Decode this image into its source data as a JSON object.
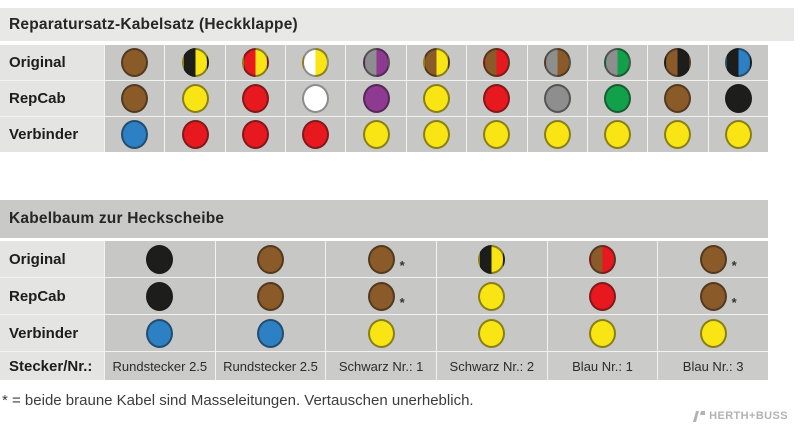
{
  "palette": {
    "brown": "#8a5a28",
    "black": "#1d1d1b",
    "yellow": "#f9e414",
    "red": "#e7181e",
    "white": "#ffffff",
    "purple": "#8d3a90",
    "gray": "#8e8e8e",
    "green": "#13a04a",
    "blue": "#2d80c3"
  },
  "table1": {
    "title": "Reparatursatz-Kabelsatz (Heckklappe)",
    "rows": [
      {
        "label": "Original",
        "cells": [
          {
            "colors": [
              "brown"
            ]
          },
          {
            "colors": [
              "black",
              "yellow"
            ]
          },
          {
            "colors": [
              "red",
              "yellow"
            ]
          },
          {
            "colors": [
              "white",
              "yellow"
            ]
          },
          {
            "colors": [
              "gray",
              "purple"
            ]
          },
          {
            "colors": [
              "brown",
              "yellow"
            ]
          },
          {
            "colors": [
              "brown",
              "red"
            ]
          },
          {
            "colors": [
              "gray",
              "brown"
            ]
          },
          {
            "colors": [
              "gray",
              "green"
            ]
          },
          {
            "colors": [
              "brown",
              "black"
            ]
          },
          {
            "colors": [
              "black",
              "blue"
            ]
          }
        ]
      },
      {
        "label": "RepCab",
        "cells": [
          {
            "colors": [
              "brown"
            ]
          },
          {
            "colors": [
              "yellow"
            ]
          },
          {
            "colors": [
              "red"
            ]
          },
          {
            "colors": [
              "white"
            ]
          },
          {
            "colors": [
              "purple"
            ]
          },
          {
            "colors": [
              "yellow"
            ]
          },
          {
            "colors": [
              "red"
            ]
          },
          {
            "colors": [
              "gray"
            ]
          },
          {
            "colors": [
              "green"
            ]
          },
          {
            "colors": [
              "brown"
            ]
          },
          {
            "colors": [
              "black"
            ]
          }
        ]
      },
      {
        "label": "Verbinder",
        "cells": [
          {
            "colors": [
              "blue"
            ]
          },
          {
            "colors": [
              "red"
            ]
          },
          {
            "colors": [
              "red"
            ]
          },
          {
            "colors": [
              "red"
            ]
          },
          {
            "colors": [
              "yellow"
            ]
          },
          {
            "colors": [
              "yellow"
            ]
          },
          {
            "colors": [
              "yellow"
            ]
          },
          {
            "colors": [
              "yellow"
            ]
          },
          {
            "colors": [
              "yellow"
            ]
          },
          {
            "colors": [
              "yellow"
            ]
          },
          {
            "colors": [
              "yellow"
            ]
          }
        ]
      }
    ]
  },
  "table2": {
    "title": "Kabelbaum zur Heckscheibe",
    "rows": [
      {
        "label": "Original",
        "cells": [
          {
            "colors": [
              "black"
            ]
          },
          {
            "colors": [
              "brown"
            ]
          },
          {
            "colors": [
              "brown"
            ],
            "note": "*"
          },
          {
            "colors": [
              "black",
              "yellow"
            ]
          },
          {
            "colors": [
              "brown",
              "red"
            ]
          },
          {
            "colors": [
              "brown"
            ],
            "note": "*"
          }
        ]
      },
      {
        "label": "RepCab",
        "cells": [
          {
            "colors": [
              "black"
            ]
          },
          {
            "colors": [
              "brown"
            ]
          },
          {
            "colors": [
              "brown"
            ],
            "note": "*"
          },
          {
            "colors": [
              "yellow"
            ]
          },
          {
            "colors": [
              "red"
            ]
          },
          {
            "colors": [
              "brown"
            ],
            "note": "*"
          }
        ]
      },
      {
        "label": "Verbinder",
        "cells": [
          {
            "colors": [
              "blue"
            ]
          },
          {
            "colors": [
              "blue"
            ]
          },
          {
            "colors": [
              "yellow"
            ]
          },
          {
            "colors": [
              "yellow"
            ]
          },
          {
            "colors": [
              "yellow"
            ]
          },
          {
            "colors": [
              "yellow"
            ]
          }
        ]
      }
    ],
    "connector_row": {
      "label": "Stecker/Nr.:",
      "values": [
        "Rundstecker 2.5",
        "Rundstecker 2.5",
        "Schwarz Nr.: 1",
        "Schwarz Nr.: 2",
        "Blau Nr.: 1",
        "Blau Nr.: 3"
      ]
    }
  },
  "footnote": "* = beide braune Kabel sind Masseleitungen. Vertauschen unerheblich.",
  "brand": "HERTH+BUSS"
}
